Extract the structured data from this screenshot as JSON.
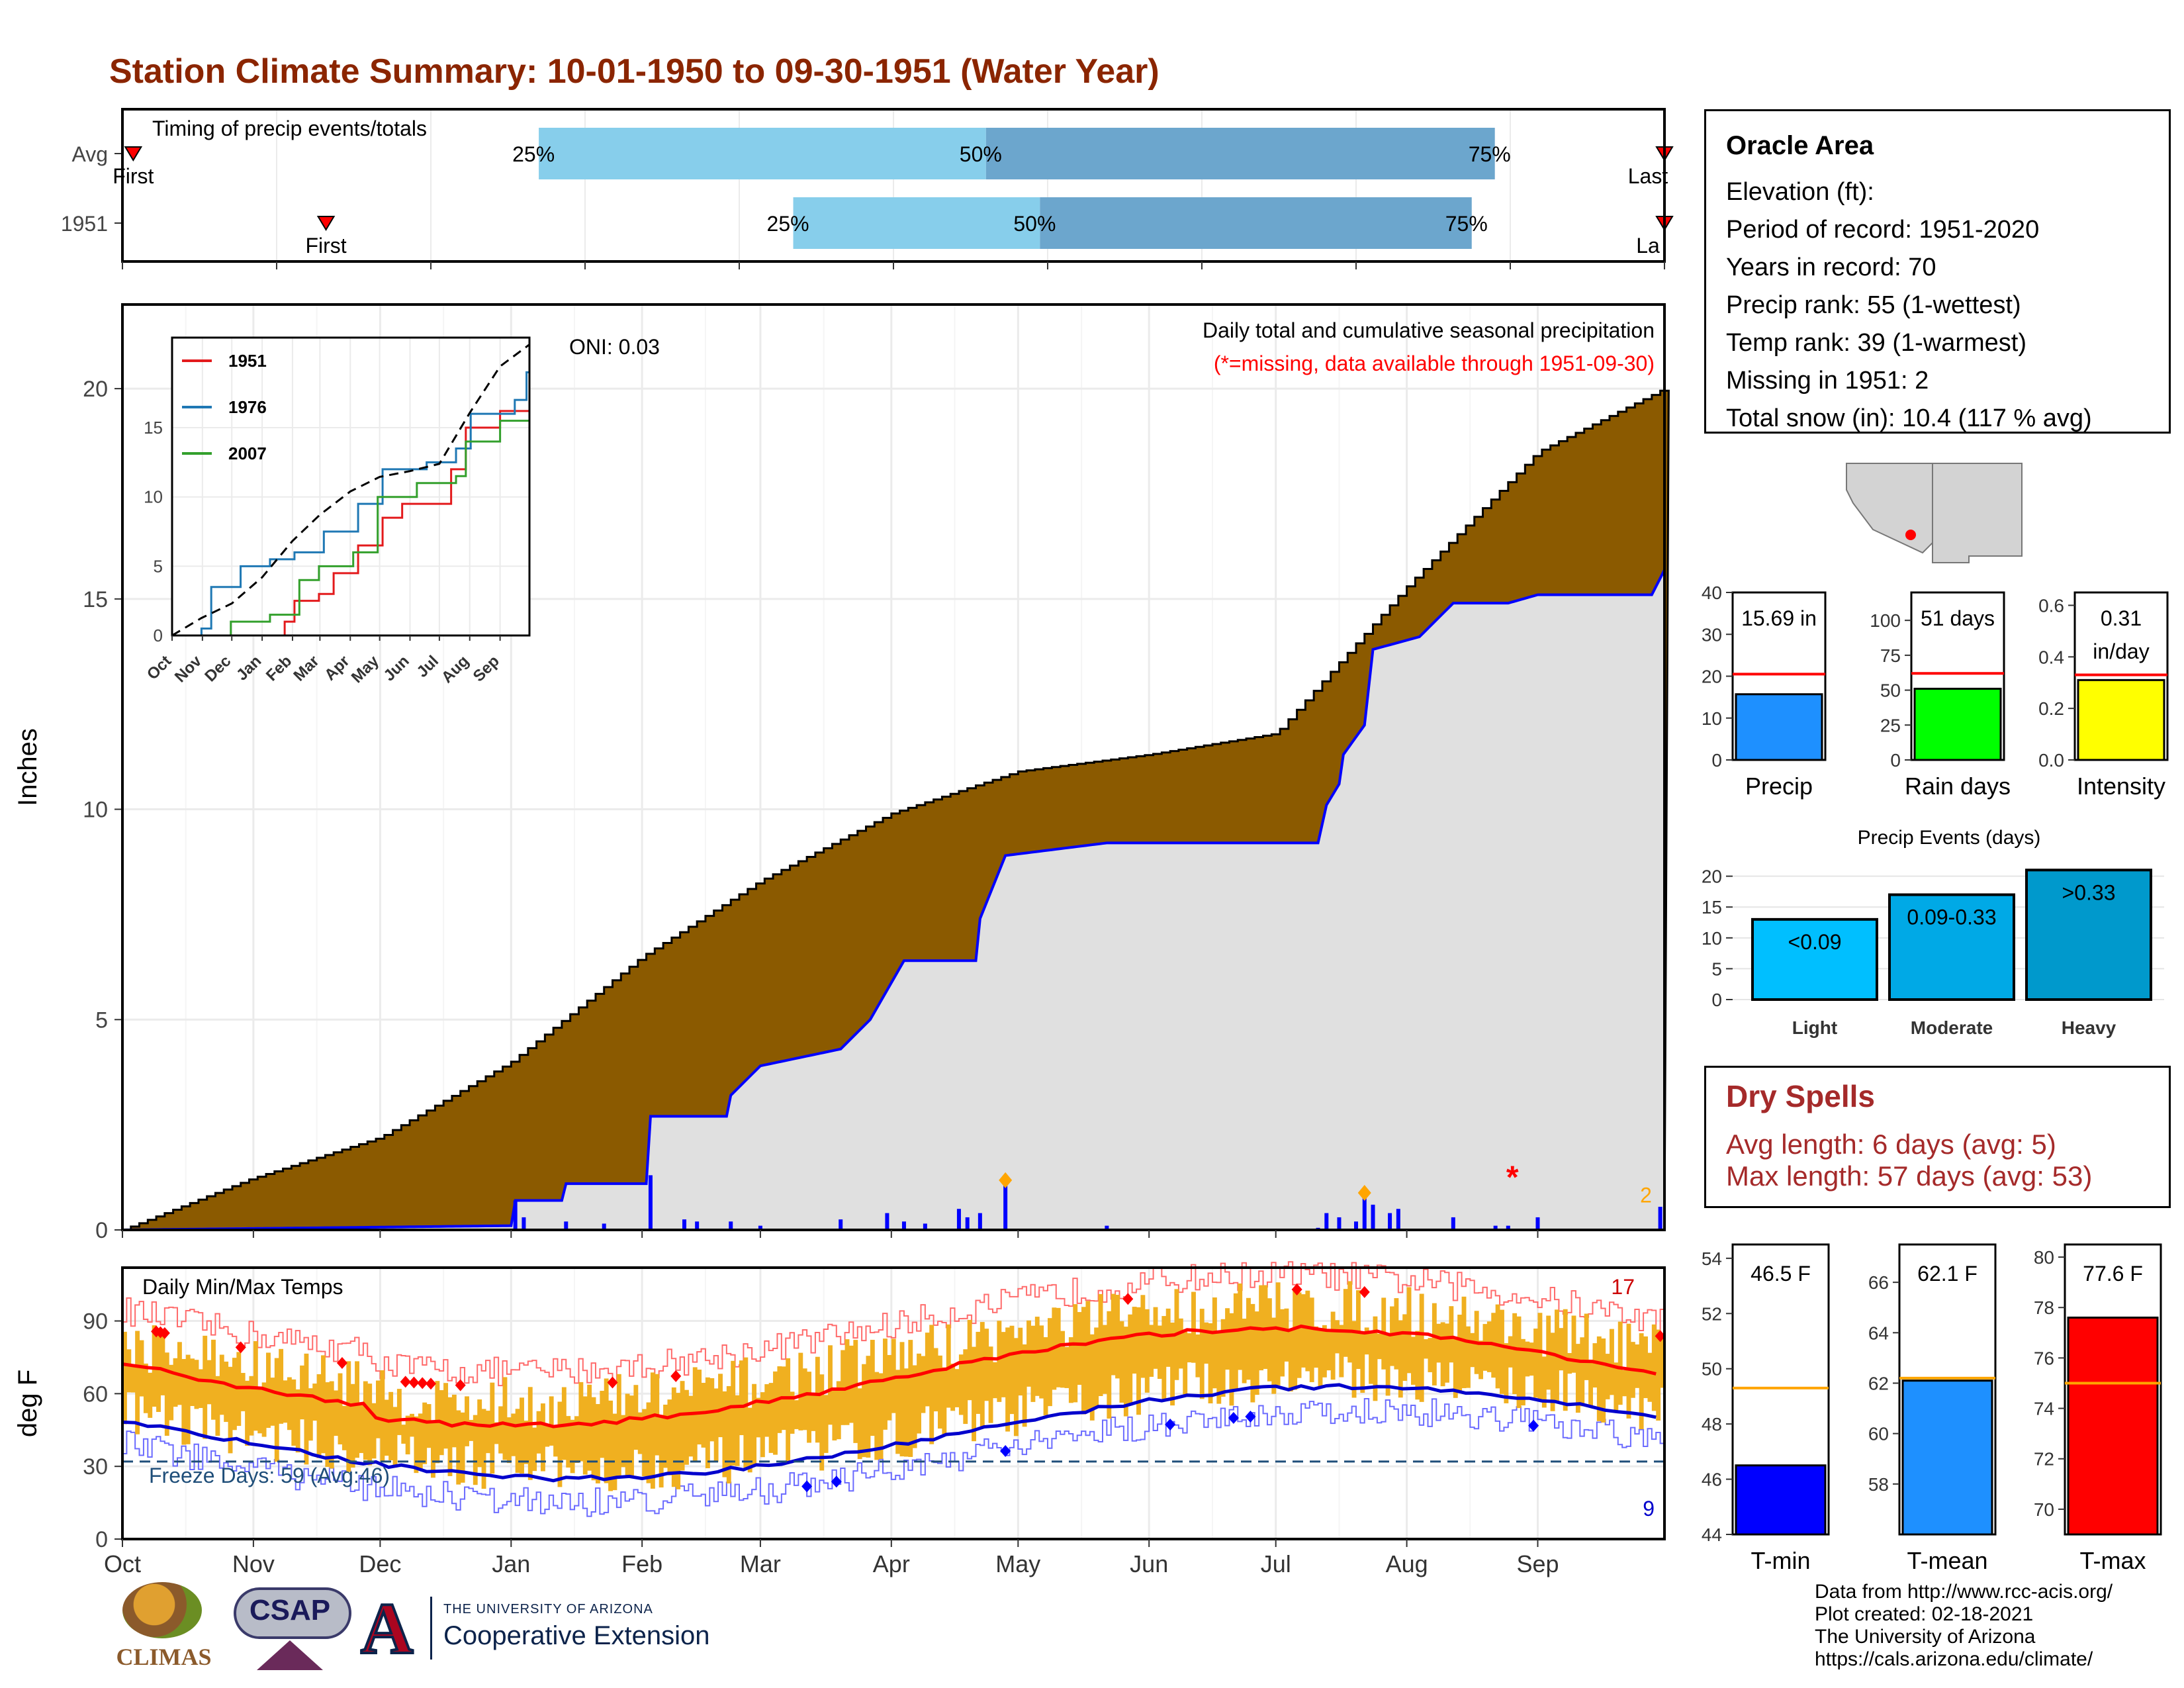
{
  "title": "Station Climate Summary: 10-01-1950 to 09-30-1951 (Water Year)",
  "timing_panel": {
    "label": "Timing of precip events/totals",
    "rows": [
      {
        "name": "Avg",
        "first_label": "First",
        "last_label": "Last",
        "first": 0.07,
        "last": 10.0,
        "p25": 2.7,
        "p50": 5.6,
        "p75": 8.9
      },
      {
        "name": "1951",
        "first_label": "First",
        "last_label": "La",
        "first": 1.32,
        "last": 10.0,
        "p25": 4.35,
        "p50": 5.95,
        "p75": 8.75
      }
    ],
    "pct_labels": [
      "25%",
      "50%",
      "75%"
    ]
  },
  "main_panel": {
    "ylabel": "Inches",
    "oni": "ONI: 0.03",
    "desc": "Daily total and cumulative seasonal precipitation",
    "missing_note": "(*=missing, data available through 1951-09-30)",
    "missing_count": "2",
    "ylim": [
      0,
      22
    ],
    "yticks": [
      0,
      5,
      10,
      15,
      20
    ]
  },
  "inset": {
    "series": [
      {
        "name": "1951",
        "color": "#e31a1c"
      },
      {
        "name": "1976",
        "color": "#1f78b4"
      },
      {
        "name": "2007",
        "color": "#33a02c"
      }
    ],
    "yticks": [
      0,
      5,
      10,
      15
    ],
    "months": [
      "Oct",
      "Nov",
      "Dec",
      "Jan",
      "Feb",
      "Mar",
      "Apr",
      "May",
      "Jun",
      "Jul",
      "Aug",
      "Sep"
    ]
  },
  "temp_panel": {
    "label": "Daily Min/Max Temps",
    "ylabel": "deg F",
    "freeze": "Freeze Days: 59 (Avg:46)",
    "count_high": "17",
    "count_low": "9",
    "yticks": [
      0,
      30,
      60,
      90
    ],
    "ylim": [
      0,
      112
    ]
  },
  "months": [
    "Oct",
    "Nov",
    "Dec",
    "Jan",
    "Feb",
    "Mar",
    "Apr",
    "May",
    "Jun",
    "Jul",
    "Aug",
    "Sep"
  ],
  "station": {
    "name": "Oracle Area",
    "lines": [
      "Elevation (ft):",
      "Period of record: 1951-2020",
      "Years in record: 70",
      "Precip rank: 55 (1-wettest)",
      "Temp rank: 39 (1-warmest)",
      "Missing in 1951: 2",
      "Total snow (in): 10.4 (117 % avg)"
    ]
  },
  "precip_bars": [
    {
      "name": "Precip",
      "label": "15.69 in",
      "value": 15.69,
      "avg": 20.5,
      "ymax": 40,
      "ticks": [
        0,
        10,
        20,
        30,
        40
      ],
      "color": "#1E90FF"
    },
    {
      "name": "Rain days",
      "label": "51 days",
      "value": 51,
      "avg": 62,
      "ymax": 120,
      "ticks": [
        0,
        25,
        50,
        75,
        100
      ],
      "color": "#00FF00"
    },
    {
      "name": "Intensity",
      "label": "0.31 in/day",
      "value": 0.31,
      "avg": 0.33,
      "ymax": 0.65,
      "ticks": [
        0.0,
        0.2,
        0.4,
        0.6
      ],
      "color": "#FFFF00"
    }
  ],
  "precip_events": {
    "title": "Precip Events (days)",
    "ticks": [
      0,
      5,
      10,
      15,
      20
    ],
    "bars": [
      {
        "name": "Light",
        "label": "<0.09",
        "value": 13,
        "color": "#00BFFF"
      },
      {
        "name": "Moderate",
        "label": "0.09-0.33",
        "value": 17,
        "color": "#00A9E6"
      },
      {
        "name": "Heavy",
        "label": ">0.33",
        "value": 21,
        "color": "#0099CC"
      }
    ]
  },
  "dry_spells": {
    "title": "Dry Spells",
    "avg": "Avg length: 6 days (avg: 5)",
    "max": "Max length: 57 days (avg: 53)"
  },
  "temp_bars": [
    {
      "name": "T-min",
      "label": "46.5 F",
      "value": 46.5,
      "avg": 49.3,
      "ylim": [
        44,
        54.5
      ],
      "ticks": [
        44,
        46,
        48,
        50,
        52,
        54
      ],
      "color": "#0000FF"
    },
    {
      "name": "T-mean",
      "label": "62.1 F",
      "value": 62.1,
      "avg": 62.2,
      "ylim": [
        56,
        67.5
      ],
      "ticks": [
        58,
        60,
        62,
        64,
        66
      ],
      "color": "#1E90FF"
    },
    {
      "name": "T-max",
      "label": "77.6 F",
      "value": 77.6,
      "avg": 75.0,
      "ylim": [
        69,
        80.5
      ],
      "ticks": [
        70,
        72,
        74,
        76,
        78,
        80
      ],
      "color": "#FF0000"
    }
  ],
  "credits": [
    "Data from http://www.rcc-acis.org/",
    "Plot created: 02-18-2021",
    "The University of Arizona",
    "https://cals.arizona.edu/climate/"
  ],
  "logos": {
    "climas": "CLIMAS",
    "csap": "CSAP",
    "ua_small": "THE UNIVERSITY OF ARIZONA",
    "ua_big": "Cooperative Extension"
  },
  "colors": {
    "cumulative": "#8B5A00",
    "fill_gray": "#E0E0E0",
    "blue": "#0000FF",
    "title": "#8B2500",
    "temp_band": "#F0B020"
  }
}
